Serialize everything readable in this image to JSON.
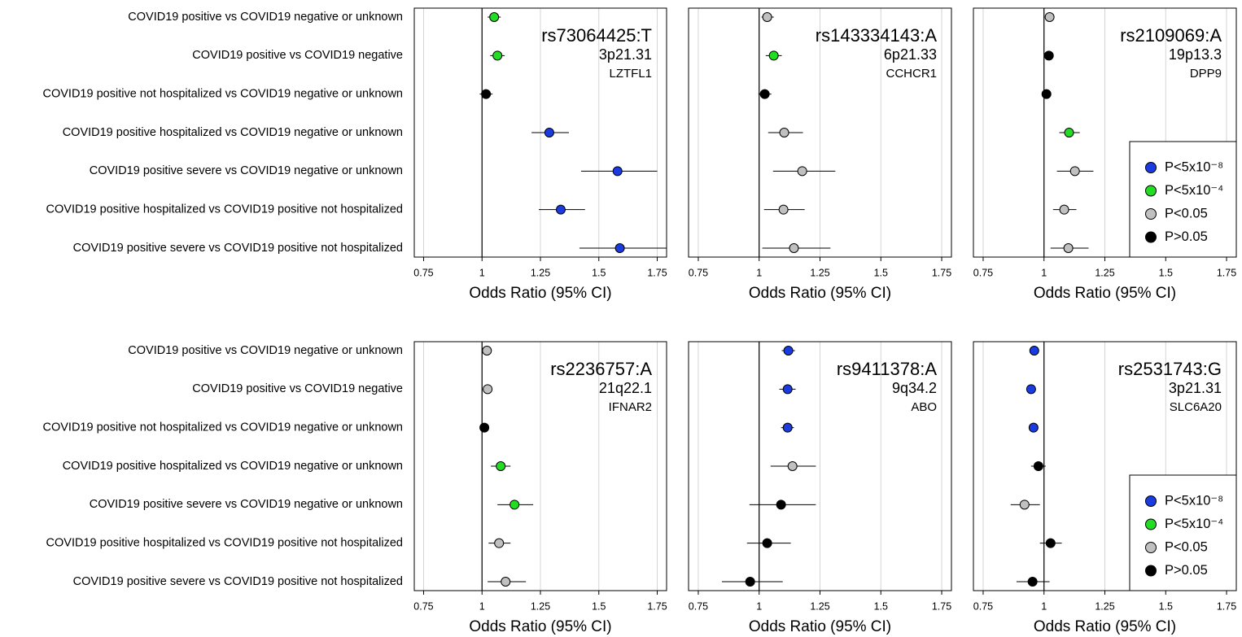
{
  "chart_data": [
    {
      "type": "forest",
      "title": "rs73064425:T",
      "subtitle": "3p21.31",
      "gene": "LZTFL1",
      "categories": [
        "COVID19 positive vs COVID19 negative or unknown",
        "COVID19 positive vs COVID19 negative",
        "COVID19 positive not hospitalized vs COVID19 negative or unknown",
        "COVID19 positive hospitalized vs COVID19 negative or unknown",
        "COVID19 positive severe vs COVID19 negative or unknown",
        "COVID19 positive hospitalized vs COVID19 positive not hospitalized",
        "COVID19 positive severe vs COVID19 positive not hospitalized"
      ],
      "values": [
        1.052,
        1.066,
        1.017,
        1.288,
        1.58,
        1.337,
        1.59
      ],
      "ci_low": [
        1.024,
        1.035,
        0.99,
        1.212,
        1.424,
        1.243,
        1.417
      ],
      "ci_high": [
        1.08,
        1.097,
        1.045,
        1.372,
        1.75,
        1.441,
        1.79
      ],
      "colors": [
        "#22dd22",
        "#22dd22",
        "#000000",
        "#1a3be0",
        "#1a3be0",
        "#1a3be0",
        "#1a3be0"
      ],
      "xlabel": "Odds Ratio (95% CI)",
      "xlim": [
        0.71,
        1.79
      ],
      "xticks": [
        0.75,
        1,
        1.25,
        1.5,
        1.75
      ],
      "reference_line": 1,
      "grid": true
    },
    {
      "type": "forest",
      "title": "rs143334143:A",
      "subtitle": "6p21.33",
      "gene": "CCHCR1",
      "values": [
        1.033,
        1.06,
        1.023,
        1.103,
        1.177,
        1.1,
        1.143
      ],
      "ci_low": [
        1.01,
        1.027,
        0.997,
        1.037,
        1.057,
        1.02,
        1.013
      ],
      "ci_high": [
        1.06,
        1.093,
        1.05,
        1.18,
        1.313,
        1.187,
        1.293
      ],
      "colors": [
        "#c0c0c0",
        "#22dd22",
        "#000000",
        "#c0c0c0",
        "#c0c0c0",
        "#c0c0c0",
        "#c0c0c0"
      ],
      "xlabel": "Odds Ratio (95% CI)",
      "xlim": [
        0.71,
        1.79
      ],
      "xticks": [
        0.75,
        1,
        1.25,
        1.5,
        1.75
      ],
      "reference_line": 1,
      "grid": true
    },
    {
      "type": "forest",
      "title": "rs2109069:A",
      "subtitle": "19p13.3",
      "gene": "DPP9",
      "values": [
        1.023,
        1.02,
        1.01,
        1.103,
        1.127,
        1.083,
        1.1
      ],
      "ci_low": [
        1.01,
        1.007,
        0.997,
        1.063,
        1.053,
        1.037,
        1.027
      ],
      "ci_high": [
        1.037,
        1.033,
        1.027,
        1.147,
        1.203,
        1.133,
        1.183
      ],
      "colors": [
        "#c0c0c0",
        "#000000",
        "#000000",
        "#22dd22",
        "#c0c0c0",
        "#c0c0c0",
        "#c0c0c0"
      ],
      "xlabel": "Odds Ratio (95% CI)",
      "xlim": [
        0.71,
        1.79
      ],
      "xticks": [
        0.75,
        1,
        1.25,
        1.5,
        1.75
      ],
      "reference_line": 1,
      "grid": true,
      "legend": {
        "position": "lower right",
        "items": [
          {
            "label": "P<5x10⁻⁸",
            "color": "#1a3be0"
          },
          {
            "label": "P<5x10⁻⁴",
            "color": "#22dd22"
          },
          {
            "label": "P<0.05",
            "color": "#c0c0c0"
          },
          {
            "label": "P>0.05",
            "color": "#000000"
          }
        ]
      }
    },
    {
      "type": "forest",
      "title": "rs2236757:A",
      "subtitle": "21q22.1",
      "gene": "IFNAR2",
      "categories": [
        "COVID19 positive vs COVID19 negative or unknown",
        "COVID19 positive vs COVID19 negative",
        "COVID19 positive not hospitalized vs COVID19 negative or unknown",
        "COVID19 positive hospitalized vs COVID19 negative or unknown",
        "COVID19 positive severe vs COVID19 negative or unknown",
        "COVID19 positive hospitalized vs COVID19 positive not hospitalized",
        "COVID19 positive severe vs COVID19 positive not hospitalized"
      ],
      "values": [
        1.021,
        1.024,
        1.01,
        1.08,
        1.139,
        1.073,
        1.101
      ],
      "ci_low": [
        1.007,
        1.01,
        0.997,
        1.038,
        1.066,
        1.028,
        1.024
      ],
      "ci_high": [
        1.035,
        1.038,
        1.024,
        1.122,
        1.219,
        1.122,
        1.188
      ],
      "colors": [
        "#c0c0c0",
        "#c0c0c0",
        "#000000",
        "#22dd22",
        "#22dd22",
        "#c0c0c0",
        "#c0c0c0"
      ],
      "xlabel": "Odds Ratio (95% CI)",
      "xlim": [
        0.71,
        1.79
      ],
      "xticks": [
        0.75,
        1,
        1.25,
        1.5,
        1.75
      ],
      "reference_line": 1,
      "grid": true
    },
    {
      "type": "forest",
      "title": "rs9411378:A",
      "subtitle": "9q34.2",
      "gene": "ABO",
      "values": [
        1.12,
        1.117,
        1.117,
        1.137,
        1.09,
        1.033,
        0.963
      ],
      "ci_low": [
        1.093,
        1.083,
        1.09,
        1.047,
        0.96,
        0.95,
        0.847
      ],
      "ci_high": [
        1.147,
        1.15,
        1.143,
        1.233,
        1.233,
        1.13,
        1.097
      ],
      "colors": [
        "#1a3be0",
        "#1a3be0",
        "#1a3be0",
        "#c0c0c0",
        "#000000",
        "#000000",
        "#000000"
      ],
      "xlabel": "Odds Ratio (95% CI)",
      "xlim": [
        0.71,
        1.79
      ],
      "xticks": [
        0.75,
        1,
        1.25,
        1.5,
        1.75
      ],
      "reference_line": 1,
      "grid": true
    },
    {
      "type": "forest",
      "title": "rs2531743:G",
      "subtitle": "3p21.31",
      "gene": "SLC6A20",
      "values": [
        0.96,
        0.947,
        0.957,
        0.977,
        0.92,
        1.027,
        0.953
      ],
      "ci_low": [
        0.947,
        0.93,
        0.943,
        0.947,
        0.863,
        0.983,
        0.887
      ],
      "ci_high": [
        0.973,
        0.963,
        0.97,
        1.007,
        0.983,
        1.073,
        1.023
      ],
      "colors": [
        "#1a3be0",
        "#1a3be0",
        "#1a3be0",
        "#000000",
        "#c0c0c0",
        "#000000",
        "#000000"
      ],
      "xlabel": "Odds Ratio (95% CI)",
      "xlim": [
        0.71,
        1.79
      ],
      "xticks": [
        0.75,
        1,
        1.25,
        1.5,
        1.75
      ],
      "reference_line": 1,
      "grid": true,
      "legend": {
        "position": "lower right",
        "items": [
          {
            "label": "P<5x10⁻⁸",
            "color": "#1a3be0"
          },
          {
            "label": "P<5x10⁻⁴",
            "color": "#22dd22"
          },
          {
            "label": "P<0.05",
            "color": "#c0c0c0"
          },
          {
            "label": "P>0.05",
            "color": "#000000"
          }
        ]
      }
    }
  ]
}
